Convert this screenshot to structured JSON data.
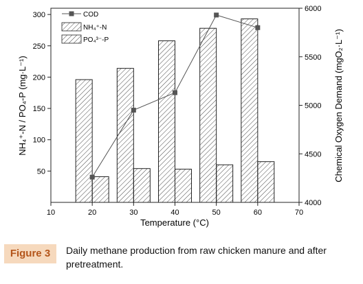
{
  "chart_data": {
    "type": "bar",
    "xlabel": "Temperature (°C)",
    "ylabel_left": "NH₄⁺-N / PO₄-P (mg·L⁻¹)",
    "ylabel_right": "Chemical Oxygen Demand (mgO₂·L⁻¹)",
    "xlim": [
      10,
      70
    ],
    "x_ticks": [
      10,
      20,
      30,
      40,
      50,
      60,
      70
    ],
    "ylim_left": [
      0,
      310
    ],
    "y_ticks_left": [
      50,
      100,
      150,
      200,
      250,
      300
    ],
    "ylim_right": [
      4000,
      6000
    ],
    "y_ticks_right": [
      4000,
      4500,
      5000,
      5500,
      6000
    ],
    "grid": false,
    "legend_position": "top-left",
    "x": [
      20,
      30,
      40,
      50,
      60
    ],
    "series": [
      {
        "name": "NH₄⁺-N",
        "axis": "left",
        "kind": "bar",
        "values": [
          196,
          214,
          258,
          278,
          293
        ]
      },
      {
        "name": "PO₄³⁻-P",
        "axis": "left",
        "kind": "bar",
        "values": [
          41,
          54,
          53,
          60,
          65
        ]
      },
      {
        "name": "COD",
        "axis": "right",
        "kind": "line",
        "values": [
          4260,
          4950,
          5130,
          5930,
          5800
        ]
      }
    ],
    "colors": {
      "bar_edge": "#222222",
      "line": "#555555",
      "marker": "#555555"
    }
  },
  "caption": {
    "label": "Figure 3",
    "text": "Daily methane production from raw chicken manure and after pretreatment."
  }
}
